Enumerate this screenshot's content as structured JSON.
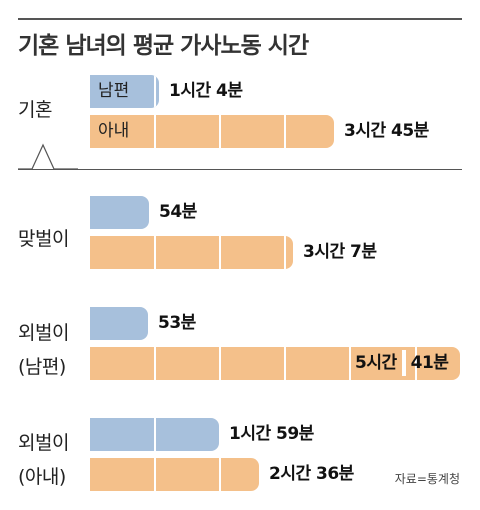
{
  "chart_data": {
    "type": "bar",
    "orientation": "horizontal",
    "title": "기혼 남녀의 평균 가사노동 시간",
    "unit": "minutes",
    "groups": [
      {
        "label": "기혼",
        "bars": [
          {
            "series": "husband",
            "name": "남편",
            "value": 64,
            "label": "1시간 4분"
          },
          {
            "series": "wife",
            "name": "아내",
            "value": 225,
            "label": "3시간 45분"
          }
        ]
      },
      {
        "label": "맞벌이",
        "bars": [
          {
            "series": "husband",
            "value": 54,
            "label": "54분"
          },
          {
            "series": "wife",
            "value": 187,
            "label": "3시간 7분"
          }
        ]
      },
      {
        "label": "외벌이 (남편)",
        "label_lines": [
          "외벌이",
          "(남편)"
        ],
        "bars": [
          {
            "series": "husband",
            "value": 53,
            "label": "53분"
          },
          {
            "series": "wife",
            "value": 341,
            "label": "5시간 41분",
            "label_parts": [
              "5시간",
              "41분"
            ]
          }
        ]
      },
      {
        "label": "외벌이 (아내)",
        "label_lines": [
          "외벌이",
          "(아내)"
        ],
        "bars": [
          {
            "series": "husband",
            "value": 119,
            "label": "1시간 59분"
          },
          {
            "series": "wife",
            "value": 156,
            "label": "2시간 36분"
          }
        ]
      }
    ],
    "segment_interval": 60,
    "source": "자료=통계청"
  },
  "colors": {
    "husband": "#a7c0dc",
    "wife": "#f4c08a",
    "text": "#222222",
    "rule": "#555555"
  }
}
